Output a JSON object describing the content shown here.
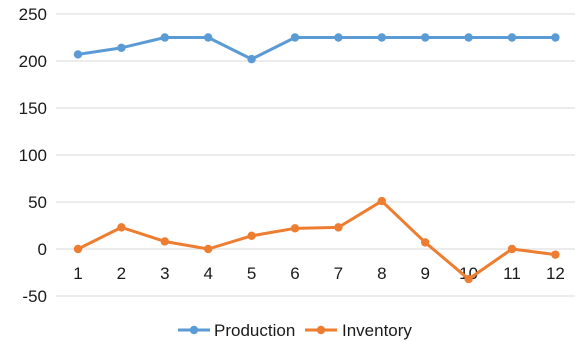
{
  "chart_data": {
    "type": "line",
    "title": "",
    "xlabel": "",
    "ylabel": "",
    "x": [
      "1",
      "2",
      "3",
      "4",
      "5",
      "6",
      "7",
      "8",
      "9",
      "10",
      "11",
      "12"
    ],
    "y_ticks": [
      "-50",
      "0",
      "50",
      "100",
      "150",
      "200",
      "250"
    ],
    "ylim": [
      -50,
      250
    ],
    "grid": true,
    "legend": "bottom",
    "series": [
      {
        "name": "Production",
        "color": "#5B9BD5",
        "values": [
          207,
          214,
          225,
          225,
          202,
          225,
          225,
          225,
          225,
          225,
          225,
          225
        ]
      },
      {
        "name": "Inventory",
        "color": "#ED7D31",
        "values": [
          0,
          23,
          8,
          0,
          14,
          22,
          23,
          51,
          7,
          -32,
          0,
          -6
        ]
      }
    ]
  }
}
